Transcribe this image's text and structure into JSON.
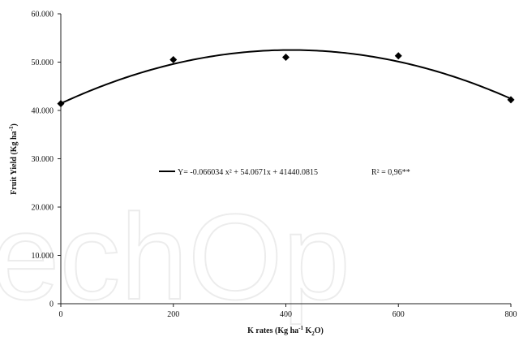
{
  "chart_data": {
    "type": "scatter",
    "xlabel": "K rates (Kg ha-1 K2O)",
    "ylabel": "Fruit Yield (Kg ha-1)",
    "xlim": [
      0,
      800
    ],
    "ylim": [
      0,
      60000
    ],
    "x_ticks": [
      "0",
      "200",
      "400",
      "600",
      "800"
    ],
    "y_ticks": [
      "0",
      "10.000",
      "20.000",
      "30.000",
      "40.000",
      "50.000",
      "60.000"
    ],
    "points": [
      {
        "x": 0,
        "y": 41400
      },
      {
        "x": 200,
        "y": 50500
      },
      {
        "x": 400,
        "y": 51000
      },
      {
        "x": 600,
        "y": 51300
      },
      {
        "x": 800,
        "y": 42200
      }
    ],
    "fit": {
      "a": -0.066034,
      "b": 54.0671,
      "c": 41440.0815
    },
    "equation": "Y= -0.066034 x² + 54.0671x + 41440.0815",
    "r2_label": "R² = 0,96**",
    "marker": "diamond",
    "grid": false
  }
}
